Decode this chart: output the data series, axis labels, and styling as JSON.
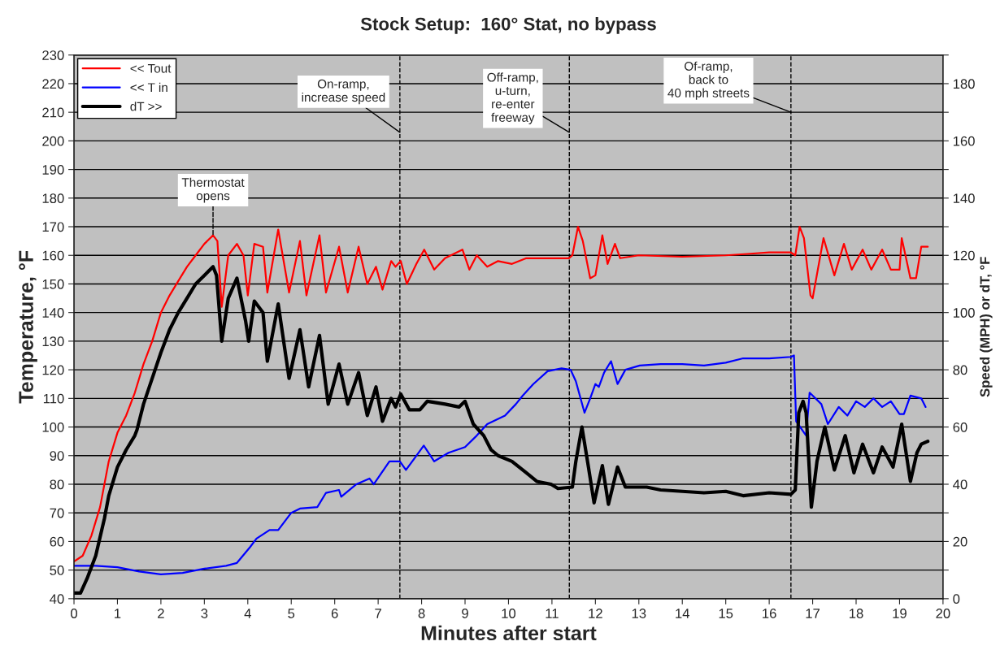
{
  "chart_data": {
    "type": "line",
    "title": "Stock Setup:  160° Stat, no bypass",
    "xlabel": "Minutes after start",
    "ylabel": "Temperature, °F",
    "y2label": "Speed (MPH) or dT, °F",
    "xlim": [
      0,
      20
    ],
    "xticks": [
      0,
      1,
      2,
      3,
      4,
      5,
      6,
      7,
      8,
      9,
      10,
      11,
      12,
      13,
      14,
      15,
      16,
      17,
      18,
      19,
      20
    ],
    "ylim": [
      40,
      230
    ],
    "yticks": [
      40,
      50,
      60,
      70,
      80,
      90,
      100,
      110,
      120,
      130,
      140,
      150,
      160,
      170,
      180,
      190,
      200,
      210,
      220,
      230
    ],
    "y2lim": [
      0,
      190
    ],
    "y2ticks": [
      0,
      {
        "value": 10,
        "label": null
      },
      20,
      {
        "value": 30,
        "label": null
      },
      40,
      {
        "value": 50,
        "label": null
      },
      60,
      {
        "value": 70,
        "label": null
      },
      80,
      {
        "value": 90,
        "label": null
      },
      100,
      {
        "value": 110,
        "label": null
      },
      120,
      {
        "value": 130,
        "label": null
      },
      140,
      {
        "value": 150,
        "label": null
      },
      160,
      {
        "value": 170,
        "label": null
      },
      180,
      {
        "value": 190,
        "label": null
      }
    ],
    "grid": "y",
    "legend": "top left",
    "marker": "none",
    "line_style": "solid",
    "series": [
      {
        "name": "<< Tout",
        "color": "#ff0000",
        "x": [
          0,
          0.2,
          0.4,
          0.6,
          0.8,
          1.0,
          1.2,
          1.4,
          1.6,
          1.8,
          2.0,
          2.2,
          2.4,
          2.6,
          2.8,
          3.0,
          3.2,
          3.3,
          3.4,
          3.55,
          3.75,
          3.9,
          4.0,
          4.15,
          4.35,
          4.45,
          4.7,
          4.95,
          5.2,
          5.35,
          5.65,
          5.8,
          6.1,
          6.3,
          6.55,
          6.75,
          6.95,
          7.1,
          7.3,
          7.4,
          7.52,
          7.66,
          7.88,
          8.06,
          8.29,
          8.54,
          8.94,
          9.1,
          9.27,
          9.51,
          9.76,
          10.08,
          10.41,
          11.39,
          11.47,
          11.6,
          11.71,
          11.88,
          12.0,
          12.16,
          12.28,
          12.45,
          12.57,
          13.0,
          14.0,
          15.0,
          15.5,
          16.0,
          16.5,
          16.6,
          16.7,
          16.8,
          16.95,
          17.0,
          17.25,
          17.5,
          17.72,
          17.9,
          18.15,
          18.35,
          18.6,
          18.8,
          19.0,
          19.05,
          19.25,
          19.38,
          19.5,
          19.65
        ],
        "values": [
          53,
          55,
          62,
          72,
          88,
          98,
          104,
          112,
          122,
          130,
          140,
          146,
          151,
          156,
          160,
          164,
          167,
          165,
          142,
          160,
          164,
          160,
          146,
          164,
          163,
          147,
          169,
          147,
          165,
          146,
          167,
          147,
          163,
          147,
          163,
          150,
          156,
          148,
          158,
          156,
          158,
          150,
          157,
          162,
          155,
          159,
          162,
          155,
          160,
          156,
          158,
          157,
          159,
          159,
          160,
          170,
          165,
          152,
          153,
          167,
          157,
          164,
          159,
          160,
          159.5,
          160,
          160.5,
          161,
          161,
          160,
          170,
          166,
          146,
          145,
          166,
          153,
          164,
          155,
          162,
          155,
          162,
          155,
          155,
          166,
          152,
          152,
          163,
          163
        ]
      },
      {
        "name": "<< T in",
        "color": "#0000ff",
        "x": [
          0,
          0.5,
          1.0,
          1.5,
          2.0,
          2.5,
          3.0,
          3.5,
          3.75,
          4.05,
          4.2,
          4.5,
          4.7,
          5.0,
          5.2,
          5.6,
          5.8,
          6.1,
          6.15,
          6.5,
          6.8,
          6.9,
          7.26,
          7.5,
          7.64,
          8.05,
          8.29,
          8.62,
          9.0,
          9.27,
          9.51,
          9.92,
          10.17,
          10.33,
          10.57,
          10.9,
          11.22,
          11.43,
          11.55,
          11.75,
          11.88,
          12.0,
          12.08,
          12.2,
          12.36,
          12.51,
          12.69,
          13.02,
          13.5,
          14.0,
          14.5,
          15.0,
          15.4,
          16.0,
          16.5,
          16.57,
          16.62,
          16.85,
          16.93,
          17.2,
          17.35,
          17.6,
          17.8,
          18.0,
          18.2,
          18.4,
          18.6,
          18.8,
          19.0,
          19.1,
          19.25,
          19.5,
          19.6
        ],
        "values": [
          51.5,
          51.5,
          51,
          49.5,
          48.5,
          49,
          50.5,
          51.5,
          52.5,
          58,
          61,
          64,
          64,
          70,
          71.5,
          72,
          77,
          78,
          75.6,
          80,
          82,
          80,
          88,
          88,
          85,
          93.5,
          88,
          91,
          93,
          97,
          101,
          104,
          108,
          111,
          115,
          119.5,
          120.5,
          120,
          116,
          105,
          110,
          115,
          114,
          119,
          123,
          115,
          120,
          121.5,
          122,
          122,
          121.5,
          122.5,
          124,
          124,
          124.5,
          125,
          102,
          97,
          112,
          108,
          101,
          107,
          104,
          109,
          107,
          110,
          107,
          109,
          104.5,
          104.5,
          111,
          110,
          107
        ]
      },
      {
        "name": "dT >>",
        "color": "#000000",
        "axis": "y2",
        "x": [
          0,
          0.15,
          0.3,
          0.5,
          0.7,
          0.8,
          1.0,
          1.2,
          1.4,
          1.45,
          1.6,
          1.8,
          2.0,
          2.2,
          2.4,
          2.6,
          2.8,
          3.0,
          3.2,
          3.28,
          3.4,
          3.55,
          3.75,
          3.95,
          4.02,
          4.15,
          4.35,
          4.45,
          4.7,
          4.95,
          5.2,
          5.4,
          5.65,
          5.85,
          6.1,
          6.3,
          6.55,
          6.75,
          6.95,
          7.1,
          7.3,
          7.4,
          7.52,
          7.72,
          7.96,
          8.13,
          8.54,
          8.86,
          9.0,
          9.19,
          9.43,
          9.6,
          9.76,
          10.08,
          10.41,
          10.65,
          10.98,
          11.14,
          11.47,
          11.55,
          11.69,
          11.84,
          11.97,
          12.16,
          12.3,
          12.51,
          12.69,
          13.18,
          13.5,
          14.0,
          14.5,
          15.0,
          15.4,
          16.0,
          16.5,
          16.6,
          16.68,
          16.78,
          16.85,
          16.97,
          17.1,
          17.28,
          17.5,
          17.75,
          17.95,
          18.15,
          18.4,
          18.6,
          18.85,
          19.05,
          19.25,
          19.4,
          19.5,
          19.65
        ],
        "values": [
          2,
          2,
          7,
          15,
          28,
          36,
          46,
          52,
          57,
          59,
          68,
          77,
          86,
          94,
          100,
          105,
          110,
          113,
          116,
          113,
          90,
          105,
          112,
          97,
          90,
          104,
          100,
          83,
          103,
          77,
          94,
          74,
          92,
          68,
          82,
          68,
          79,
          64,
          74,
          62,
          70,
          67,
          71.5,
          66,
          66,
          69,
          68,
          67,
          69,
          61,
          57,
          52,
          50,
          48,
          44,
          41,
          40,
          38.5,
          39,
          48,
          60,
          46,
          33.5,
          46.5,
          33,
          46,
          39,
          39,
          38,
          37.5,
          37,
          37.5,
          36,
          37,
          36.5,
          38,
          65,
          69,
          65,
          32,
          48,
          60,
          45,
          57,
          44,
          54,
          44,
          53,
          46,
          61,
          41,
          51,
          54,
          55
        ]
      }
    ],
    "ref_lines": [
      {
        "axis": "x",
        "value": 7.5,
        "color": "#000000",
        "line_style": "dashed"
      },
      {
        "axis": "x",
        "value": 11.4,
        "color": "#000000",
        "line_style": "dashed"
      },
      {
        "axis": "x",
        "value": 16.5,
        "color": "#000000",
        "line_style": "dashed"
      }
    ],
    "annotations": [
      {
        "text": "Thermostat\nopens",
        "x": 3.2,
        "y": 167
      },
      {
        "text": "On-ramp,\nincrease speed",
        "x": 7.5,
        "y": 203
      },
      {
        "text": "Off-ramp,\nu-turn,\nre-enter\nfreeway",
        "x": 11.4,
        "y": 203
      },
      {
        "text": "Of-ramp,\nback to\n40 mph streets",
        "x": 16.5,
        "y": 210
      }
    ]
  }
}
